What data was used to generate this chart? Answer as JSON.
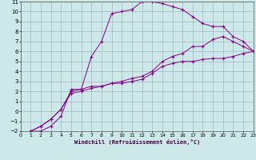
{
  "xlabel": "Windchill (Refroidissement éolien,°C)",
  "bg_color": "#cce8e8",
  "line_color": "#880088",
  "grid_color": "#99aabb",
  "xlim": [
    0,
    23
  ],
  "ylim": [
    -2,
    11
  ],
  "xticks": [
    0,
    1,
    2,
    3,
    4,
    5,
    6,
    7,
    8,
    9,
    10,
    11,
    12,
    13,
    14,
    15,
    16,
    17,
    18,
    19,
    20,
    21,
    22,
    23
  ],
  "yticks": [
    -2,
    -1,
    0,
    1,
    2,
    3,
    4,
    5,
    6,
    7,
    8,
    9,
    10,
    11
  ],
  "curve1_x": [
    1,
    2,
    3,
    4,
    5,
    6,
    7,
    8,
    9,
    10,
    11,
    12,
    13,
    14,
    15,
    16,
    17,
    18,
    19,
    20,
    21,
    22,
    23
  ],
  "curve1_y": [
    -2,
    -2,
    -1.5,
    -0.5,
    2.2,
    2.2,
    2.5,
    2.5,
    2.8,
    2.8,
    3.0,
    3.2,
    3.8,
    4.5,
    4.8,
    5.0,
    5.0,
    5.2,
    5.3,
    5.3,
    5.5,
    5.8,
    6.0
  ],
  "curve2_x": [
    1,
    2,
    3,
    4,
    5,
    6,
    7,
    8,
    9,
    10,
    11,
    12,
    13,
    14,
    15,
    16,
    17,
    18,
    19,
    20,
    21,
    22,
    23
  ],
  "curve2_y": [
    -2,
    -1.5,
    -0.8,
    0.2,
    2.0,
    2.2,
    5.5,
    7.0,
    9.8,
    10.0,
    10.2,
    11.0,
    11.0,
    10.8,
    10.5,
    10.2,
    9.5,
    8.8,
    8.5,
    8.5,
    7.5,
    7.0,
    6.0
  ],
  "curve3_x": [
    1,
    2,
    3,
    4,
    5,
    6,
    7,
    8,
    9,
    10,
    11,
    12,
    13,
    14,
    15,
    16,
    17,
    18,
    19,
    20,
    21,
    22,
    23
  ],
  "curve3_y": [
    -2,
    -1.5,
    -0.8,
    0.2,
    1.8,
    2.0,
    2.3,
    2.5,
    2.8,
    3.0,
    3.3,
    3.5,
    4.0,
    5.0,
    5.5,
    5.8,
    6.5,
    6.5,
    7.2,
    7.5,
    7.0,
    6.5,
    6.0
  ]
}
